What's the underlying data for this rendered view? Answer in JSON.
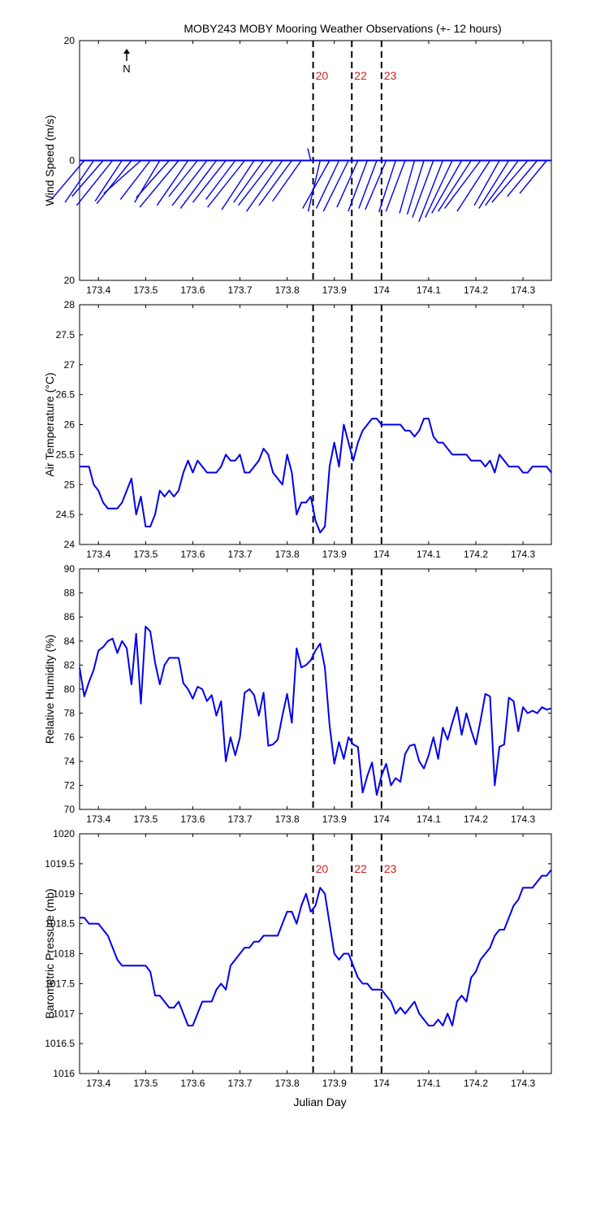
{
  "title": "MOBY243 MOBY Mooring Weather Observations (+- 12 hours)",
  "xlabel": "Julian Day",
  "x_ticks": [
    "173.4",
    "173.5",
    "173.6",
    "173.7",
    "173.8",
    "173.9",
    "174",
    "174.1",
    "174.2",
    "174.3"
  ],
  "north_label": "N",
  "event_markers": [
    {
      "x": 173.855,
      "label": "20"
    },
    {
      "x": 173.937,
      "label": "22"
    },
    {
      "x": 174.0,
      "label": "23"
    }
  ],
  "colors": {
    "series": "#0000ee",
    "marker_label": "#cc2222",
    "axis": "#000000"
  },
  "chart_data": [
    {
      "type": "quiver",
      "ylabel": "Wind Speed (m/s)",
      "ylim": [
        -20,
        20
      ],
      "y_tick_labels": [
        "20",
        "0",
        "20"
      ],
      "xlim": [
        173.36,
        174.36
      ],
      "series": [
        {
          "name": "",
          "x": [
            173.37,
            173.39,
            173.41,
            173.43,
            173.45,
            173.47,
            173.49,
            173.51,
            173.53,
            173.55,
            173.57,
            173.59,
            173.61,
            173.63,
            173.65,
            173.67,
            173.69,
            173.71,
            173.73,
            173.75,
            173.77,
            173.79,
            173.81,
            173.83,
            173.85,
            173.87,
            173.89,
            173.91,
            173.93,
            173.95,
            173.97,
            173.99,
            174.01,
            174.03,
            174.05,
            174.07,
            174.09,
            174.11,
            174.13,
            174.15,
            174.17,
            174.19,
            174.21,
            174.23,
            174.25,
            174.27,
            174.29,
            174.31,
            174.33,
            174.35
          ],
          "u": [
            5.5,
            4.8,
            5.2,
            6.0,
            4.5,
            5.8,
            6.2,
            5.0,
            4.2,
            5.5,
            6.5,
            5.2,
            4.8,
            5.8,
            6.0,
            5.5,
            4.9,
            6.2,
            5.4,
            5.0,
            5.8,
            6.0,
            5.5,
            4.8,
            0.5,
            2.0,
            4.5,
            3.8,
            4.2,
            3.5,
            3.2,
            3.0,
            3.5,
            2.8,
            3.2,
            2.5,
            2.8,
            3.5,
            4.0,
            4.5,
            5.0,
            5.5,
            6.0,
            5.5,
            4.2,
            5.0,
            5.5,
            6.0,
            5.0,
            4.5
          ],
          "v": [
            -6.5,
            -7.0,
            -6.0,
            -7.5,
            -6.8,
            -7.2,
            -5.5,
            -6.5,
            -7.0,
            -6.2,
            -7.8,
            -7.5,
            -6.0,
            -7.5,
            -8.0,
            -7.0,
            -6.5,
            -7.8,
            -8.2,
            -7.0,
            -7.5,
            -8.5,
            -7.5,
            -6.8,
            2.0,
            -8.5,
            -8.0,
            -8.0,
            -8.5,
            -7.8,
            -8.5,
            -8.0,
            -8.2,
            -8.6,
            -8.5,
            -8.8,
            -9.0,
            -9.5,
            -10.2,
            -9.5,
            -8.8,
            -8.5,
            -8.0,
            -8.5,
            -7.5,
            -8.0,
            -7.5,
            -7.0,
            -6.0,
            -5.5
          ]
        }
      ]
    },
    {
      "type": "line",
      "ylabel": "Air Temperature (°C)",
      "ylim": [
        24,
        28
      ],
      "y_tick_labels": [
        "24",
        "24.5",
        "25",
        "25.5",
        "26",
        "26.5",
        "27",
        "27.5",
        "28"
      ],
      "xlim": [
        173.36,
        174.36
      ],
      "series": [
        {
          "name": "",
          "x": [
            173.36,
            173.37,
            173.38,
            173.39,
            173.4,
            173.41,
            173.42,
            173.43,
            173.44,
            173.45,
            173.46,
            173.47,
            173.48,
            173.49,
            173.5,
            173.51,
            173.52,
            173.53,
            173.54,
            173.55,
            173.56,
            173.57,
            173.58,
            173.59,
            173.6,
            173.61,
            173.62,
            173.63,
            173.64,
            173.65,
            173.66,
            173.67,
            173.68,
            173.69,
            173.7,
            173.71,
            173.72,
            173.73,
            173.74,
            173.75,
            173.76,
            173.77,
            173.78,
            173.79,
            173.8,
            173.81,
            173.82,
            173.83,
            173.84,
            173.85,
            173.86,
            173.87,
            173.88,
            173.89,
            173.9,
            173.91,
            173.92,
            173.93,
            173.94,
            173.95,
            173.96,
            173.97,
            173.98,
            173.99,
            174.0,
            174.01,
            174.02,
            174.03,
            174.04,
            174.05,
            174.06,
            174.07,
            174.08,
            174.09,
            174.1,
            174.11,
            174.12,
            174.13,
            174.14,
            174.15,
            174.16,
            174.17,
            174.18,
            174.19,
            174.2,
            174.21,
            174.22,
            174.23,
            174.24,
            174.25,
            174.26,
            174.27,
            174.28,
            174.29,
            174.3,
            174.31,
            174.32,
            174.33,
            174.34,
            174.35,
            174.36
          ],
          "values": [
            25.3,
            25.3,
            25.3,
            25.0,
            24.9,
            24.7,
            24.6,
            24.6,
            24.6,
            24.7,
            24.9,
            25.1,
            24.5,
            24.8,
            24.3,
            24.3,
            24.5,
            24.9,
            24.8,
            24.9,
            24.8,
            24.9,
            25.2,
            25.4,
            25.2,
            25.4,
            25.3,
            25.2,
            25.2,
            25.2,
            25.3,
            25.5,
            25.4,
            25.4,
            25.5,
            25.2,
            25.2,
            25.3,
            25.4,
            25.6,
            25.5,
            25.2,
            25.1,
            25.0,
            25.5,
            25.2,
            24.5,
            24.7,
            24.7,
            24.8,
            24.4,
            24.2,
            24.3,
            25.3,
            25.7,
            25.3,
            26.0,
            25.7,
            25.4,
            25.7,
            25.9,
            26.0,
            26.1,
            26.1,
            26.0,
            26.0,
            26.0,
            26.0,
            26.0,
            25.9,
            25.9,
            25.8,
            25.9,
            26.1,
            26.1,
            25.8,
            25.7,
            25.7,
            25.6,
            25.5,
            25.5,
            25.5,
            25.5,
            25.4,
            25.4,
            25.4,
            25.3,
            25.4,
            25.2,
            25.5,
            25.4,
            25.3,
            25.3,
            25.3,
            25.2,
            25.2,
            25.3,
            25.3,
            25.3,
            25.3,
            25.2
          ]
        }
      ]
    },
    {
      "type": "line",
      "ylabel": "Relative Humidity (%)",
      "ylim": [
        70,
        90
      ],
      "y_tick_labels": [
        "70",
        "72",
        "74",
        "76",
        "78",
        "80",
        "82",
        "84",
        "86",
        "88",
        "90"
      ],
      "xlim": [
        173.36,
        174.36
      ],
      "series": [
        {
          "name": "",
          "x": [
            173.36,
            173.37,
            173.38,
            173.39,
            173.4,
            173.41,
            173.42,
            173.43,
            173.44,
            173.45,
            173.46,
            173.47,
            173.48,
            173.49,
            173.5,
            173.51,
            173.52,
            173.53,
            173.54,
            173.55,
            173.56,
            173.57,
            173.58,
            173.59,
            173.6,
            173.61,
            173.62,
            173.63,
            173.64,
            173.65,
            173.66,
            173.67,
            173.68,
            173.69,
            173.7,
            173.71,
            173.72,
            173.73,
            173.74,
            173.75,
            173.76,
            173.77,
            173.78,
            173.79,
            173.8,
            173.81,
            173.82,
            173.83,
            173.84,
            173.85,
            173.86,
            173.87,
            173.88,
            173.89,
            173.9,
            173.91,
            173.92,
            173.93,
            173.94,
            173.95,
            173.96,
            173.97,
            173.98,
            173.99,
            174.0,
            174.01,
            174.02,
            174.03,
            174.04,
            174.05,
            174.06,
            174.07,
            174.08,
            174.09,
            174.1,
            174.11,
            174.12,
            174.13,
            174.14,
            174.15,
            174.16,
            174.17,
            174.18,
            174.19,
            174.2,
            174.21,
            174.22,
            174.23,
            174.24,
            174.25,
            174.26,
            174.27,
            174.28,
            174.29,
            174.3,
            174.31,
            174.32,
            174.33,
            174.34,
            174.35,
            174.36
          ],
          "values": [
            81.8,
            79.4,
            80.6,
            81.6,
            83.2,
            83.5,
            84.0,
            84.2,
            83.0,
            84.0,
            83.4,
            80.4,
            84.6,
            78.8,
            85.2,
            84.8,
            82.2,
            80.4,
            82.0,
            82.6,
            82.6,
            82.6,
            80.5,
            80.0,
            79.2,
            80.2,
            80.0,
            79.0,
            79.5,
            77.8,
            79.0,
            74.0,
            76.0,
            74.5,
            76.0,
            79.7,
            80.0,
            79.5,
            77.8,
            79.7,
            75.3,
            75.4,
            75.8,
            77.8,
            79.6,
            77.2,
            83.4,
            81.8,
            82.0,
            82.4,
            83.2,
            83.8,
            81.8,
            77.0,
            73.8,
            75.6,
            74.2,
            76.0,
            75.4,
            75.2,
            71.4,
            72.8,
            73.9,
            71.2,
            72.8,
            73.8,
            72.0,
            72.6,
            72.3,
            74.6,
            75.3,
            75.4,
            74.0,
            73.4,
            74.5,
            76.0,
            74.2,
            76.8,
            75.8,
            77.2,
            78.5,
            76.2,
            78.0,
            76.6,
            75.4,
            77.4,
            79.6,
            79.4,
            72.0,
            75.2,
            75.4,
            79.3,
            79.0,
            76.5,
            78.5,
            78.0,
            78.2,
            78.0,
            78.5,
            78.3,
            78.4
          ]
        }
      ]
    },
    {
      "type": "line",
      "ylabel": "Barometric Pressure (mb)",
      "ylim": [
        1016,
        1020
      ],
      "y_tick_labels": [
        "1016",
        "1016.5",
        "1017",
        "1017.5",
        "1018",
        "1018.5",
        "1019",
        "1019.5",
        "1020"
      ],
      "xlim": [
        173.36,
        174.36
      ],
      "series": [
        {
          "name": "",
          "x": [
            173.36,
            173.37,
            173.38,
            173.39,
            173.4,
            173.41,
            173.42,
            173.43,
            173.44,
            173.45,
            173.46,
            173.47,
            173.48,
            173.49,
            173.5,
            173.51,
            173.52,
            173.53,
            173.54,
            173.55,
            173.56,
            173.57,
            173.58,
            173.59,
            173.6,
            173.61,
            173.62,
            173.63,
            173.64,
            173.65,
            173.66,
            173.67,
            173.68,
            173.69,
            173.7,
            173.71,
            173.72,
            173.73,
            173.74,
            173.75,
            173.76,
            173.77,
            173.78,
            173.79,
            173.8,
            173.81,
            173.82,
            173.83,
            173.84,
            173.85,
            173.86,
            173.87,
            173.88,
            173.89,
            173.9,
            173.91,
            173.92,
            173.93,
            173.94,
            173.95,
            173.96,
            173.97,
            173.98,
            173.99,
            174.0,
            174.01,
            174.02,
            174.03,
            174.04,
            174.05,
            174.06,
            174.07,
            174.08,
            174.09,
            174.1,
            174.11,
            174.12,
            174.13,
            174.14,
            174.15,
            174.16,
            174.17,
            174.18,
            174.19,
            174.2,
            174.21,
            174.22,
            174.23,
            174.24,
            174.25,
            174.26,
            174.27,
            174.28,
            174.29,
            174.3,
            174.31,
            174.32,
            174.33,
            174.34,
            174.35,
            174.36
          ],
          "values": [
            1018.6,
            1018.6,
            1018.5,
            1018.5,
            1018.5,
            1018.4,
            1018.3,
            1018.1,
            1017.9,
            1017.8,
            1017.8,
            1017.8,
            1017.8,
            1017.8,
            1017.8,
            1017.7,
            1017.3,
            1017.3,
            1017.2,
            1017.1,
            1017.1,
            1017.2,
            1017.0,
            1016.8,
            1016.8,
            1017.0,
            1017.2,
            1017.2,
            1017.2,
            1017.4,
            1017.5,
            1017.4,
            1017.8,
            1017.9,
            1018.0,
            1018.1,
            1018.1,
            1018.2,
            1018.2,
            1018.3,
            1018.3,
            1018.3,
            1018.3,
            1018.5,
            1018.7,
            1018.7,
            1018.5,
            1018.8,
            1019.0,
            1018.7,
            1018.8,
            1019.1,
            1019.0,
            1018.5,
            1018.0,
            1017.9,
            1018.0,
            1018.0,
            1017.8,
            1017.6,
            1017.5,
            1017.5,
            1017.4,
            1017.4,
            1017.4,
            1017.3,
            1017.2,
            1017.0,
            1017.1,
            1017.0,
            1017.1,
            1017.2,
            1017.0,
            1016.9,
            1016.8,
            1016.8,
            1016.9,
            1016.8,
            1017.0,
            1016.8,
            1017.2,
            1017.3,
            1017.2,
            1017.6,
            1017.7,
            1017.9,
            1018.0,
            1018.1,
            1018.3,
            1018.4,
            1018.4,
            1018.6,
            1018.8,
            1018.9,
            1019.1,
            1019.1,
            1019.1,
            1019.2,
            1019.3,
            1019.3,
            1019.4
          ]
        }
      ]
    }
  ]
}
